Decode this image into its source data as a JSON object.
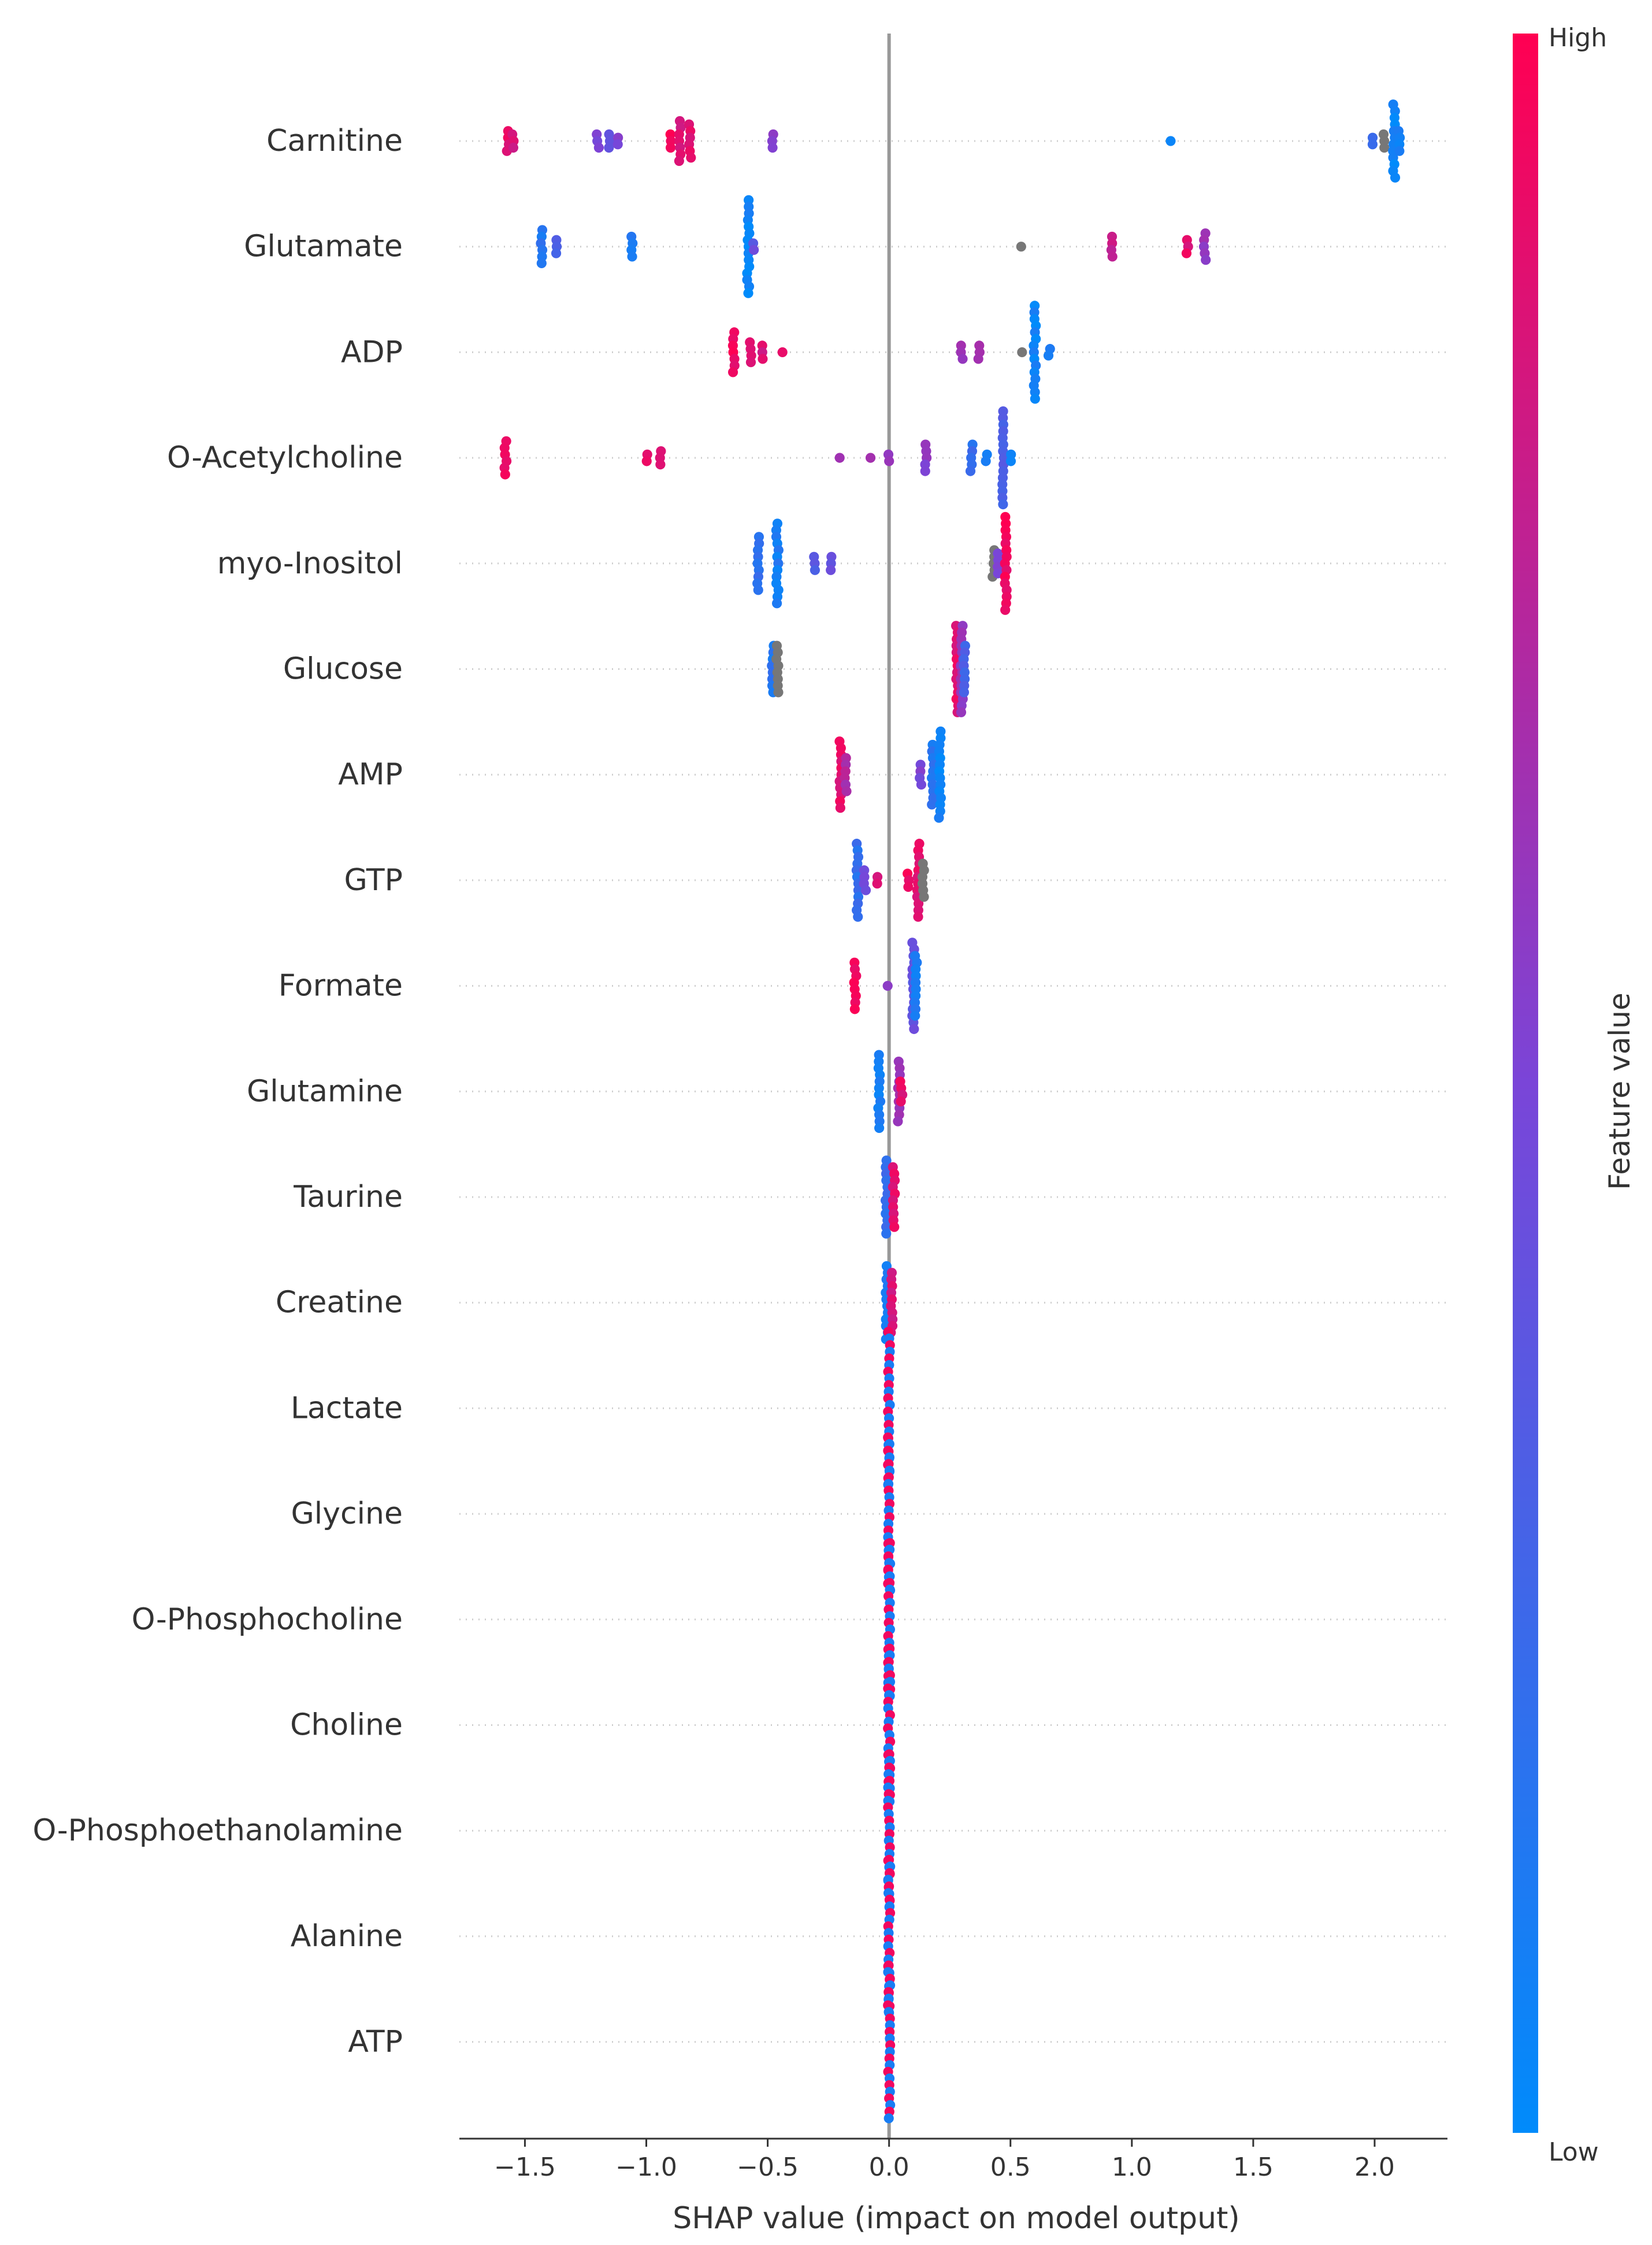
{
  "chart_data": {
    "type": "scatter",
    "subtype": "shap-beeswarm",
    "title": "",
    "xlabel": "SHAP value (impact on model output)",
    "ylabel": "",
    "xlim": [
      -1.77,
      2.3
    ],
    "xticks": [
      -1.5,
      -1.0,
      -0.5,
      0.0,
      0.5,
      1.0,
      1.5,
      2.0
    ],
    "xtick_labels": [
      "−1.5",
      "−1.0",
      "−0.5",
      "0.0",
      "0.5",
      "1.0",
      "1.5",
      "2.0"
    ],
    "grid": false,
    "colorbar": {
      "label": "Feature value",
      "high_label": "High",
      "low_label": "Low",
      "low_color": "#008bfb",
      "high_color": "#ff0052"
    },
    "missing_color": "#777777",
    "features": [
      {
        "name": "Carnitine",
        "groups": [
          {
            "x": -1.57,
            "n": 4,
            "c": 0.9
          },
          {
            "x": -1.55,
            "n": 3,
            "c": 0.85
          },
          {
            "x": -1.2,
            "n": 3,
            "c": 0.5
          },
          {
            "x": -1.15,
            "n": 3,
            "c": 0.45
          },
          {
            "x": -1.12,
            "n": 2,
            "c": 0.5
          },
          {
            "x": -0.9,
            "n": 3,
            "c": 0.95
          },
          {
            "x": -0.86,
            "n": 7,
            "c": 0.85
          },
          {
            "x": -0.82,
            "n": 6,
            "c": 0.9
          },
          {
            "x": -0.48,
            "n": 3,
            "c": 0.55
          },
          {
            "x": 1.16,
            "n": 1,
            "c": 0.0
          },
          {
            "x": 1.99,
            "n": 2,
            "c": 0.2
          },
          {
            "x": 2.04,
            "n": 3,
            "c": "na"
          },
          {
            "x": 2.08,
            "n": 12,
            "c": 0.05
          },
          {
            "x": 2.1,
            "n": 4,
            "c": 0.1
          }
        ]
      },
      {
        "name": "Glutamate",
        "groups": [
          {
            "x": -1.43,
            "n": 6,
            "c": 0.15
          },
          {
            "x": -1.37,
            "n": 3,
            "c": 0.3
          },
          {
            "x": -1.06,
            "n": 4,
            "c": 0.15
          },
          {
            "x": -0.58,
            "n": 15,
            "c": 0.05
          },
          {
            "x": -0.56,
            "n": 2,
            "c": 0.4
          },
          {
            "x": 0.54,
            "n": 1,
            "c": "na"
          },
          {
            "x": 0.92,
            "n": 4,
            "c": 0.8
          },
          {
            "x": 1.23,
            "n": 3,
            "c": 0.9
          },
          {
            "x": 1.3,
            "n": 5,
            "c": 0.6
          }
        ]
      },
      {
        "name": "ADP",
        "groups": [
          {
            "x": -0.64,
            "n": 7,
            "c": 0.95
          },
          {
            "x": -0.57,
            "n": 4,
            "c": 0.9
          },
          {
            "x": -0.52,
            "n": 3,
            "c": 0.85
          },
          {
            "x": -0.44,
            "n": 1,
            "c": 0.95
          },
          {
            "x": 0.3,
            "n": 3,
            "c": 0.6
          },
          {
            "x": 0.37,
            "n": 3,
            "c": 0.7
          },
          {
            "x": 0.55,
            "n": 1,
            "c": "na"
          },
          {
            "x": 0.6,
            "n": 15,
            "c": 0.05
          },
          {
            "x": 0.66,
            "n": 2,
            "c": 0.15
          }
        ]
      },
      {
        "name": "O-Acetylcholine",
        "groups": [
          {
            "x": -1.58,
            "n": 6,
            "c": 0.95
          },
          {
            "x": -1.0,
            "n": 2,
            "c": 0.95
          },
          {
            "x": -0.94,
            "n": 3,
            "c": 0.9
          },
          {
            "x": -0.2,
            "n": 1,
            "c": 0.6
          },
          {
            "x": -0.08,
            "n": 1,
            "c": 0.7
          },
          {
            "x": 0.0,
            "n": 2,
            "c": 0.6
          },
          {
            "x": 0.15,
            "n": 5,
            "c": 0.55
          },
          {
            "x": 0.34,
            "n": 5,
            "c": 0.2
          },
          {
            "x": 0.4,
            "n": 2,
            "c": 0.1
          },
          {
            "x": 0.47,
            "n": 15,
            "c": 0.3
          },
          {
            "x": 0.5,
            "n": 2,
            "c": 0.1
          }
        ]
      },
      {
        "name": "myo-Inositol",
        "groups": [
          {
            "x": -0.54,
            "n": 9,
            "c": 0.2
          },
          {
            "x": -0.46,
            "n": 13,
            "c": 0.1
          },
          {
            "x": -0.31,
            "n": 3,
            "c": 0.35
          },
          {
            "x": -0.24,
            "n": 3,
            "c": 0.4
          },
          {
            "x": 0.43,
            "n": 5,
            "c": "na"
          },
          {
            "x": 0.45,
            "n": 4,
            "c": 0.55
          },
          {
            "x": 0.48,
            "n": 15,
            "c": 0.95
          }
        ]
      },
      {
        "name": "Glucose",
        "groups": [
          {
            "x": -0.48,
            "n": 8,
            "c": 0.15
          },
          {
            "x": -0.46,
            "n": 8,
            "c": "na"
          },
          {
            "x": 0.28,
            "n": 14,
            "c": 0.9
          },
          {
            "x": 0.3,
            "n": 14,
            "c": 0.6
          },
          {
            "x": 0.31,
            "n": 8,
            "c": 0.3
          }
        ]
      },
      {
        "name": "AMP",
        "groups": [
          {
            "x": -0.2,
            "n": 11,
            "c": 0.9
          },
          {
            "x": -0.18,
            "n": 6,
            "c": 0.7
          },
          {
            "x": 0.13,
            "n": 4,
            "c": 0.5
          },
          {
            "x": 0.18,
            "n": 10,
            "c": 0.15
          },
          {
            "x": 0.21,
            "n": 14,
            "c": 0.05
          }
        ]
      },
      {
        "name": "GTP",
        "groups": [
          {
            "x": -0.13,
            "n": 12,
            "c": 0.2
          },
          {
            "x": -0.1,
            "n": 4,
            "c": 0.5
          },
          {
            "x": -0.05,
            "n": 2,
            "c": 0.85
          },
          {
            "x": 0.08,
            "n": 3,
            "c": 0.95
          },
          {
            "x": 0.12,
            "n": 12,
            "c": 0.9
          },
          {
            "x": 0.14,
            "n": 6,
            "c": "na"
          }
        ]
      },
      {
        "name": "Formate",
        "groups": [
          {
            "x": -0.14,
            "n": 8,
            "c": 0.95
          },
          {
            "x": -0.01,
            "n": 1,
            "c": 0.6
          },
          {
            "x": 0.1,
            "n": 14,
            "c": 0.4
          },
          {
            "x": 0.11,
            "n": 10,
            "c": 0.1
          }
        ]
      },
      {
        "name": "Glutamine",
        "groups": [
          {
            "x": -0.04,
            "n": 12,
            "c": 0.1
          },
          {
            "x": 0.04,
            "n": 10,
            "c": 0.65
          },
          {
            "x": 0.05,
            "n": 4,
            "c": 0.9
          }
        ]
      },
      {
        "name": "Taurine",
        "groups": [
          {
            "x": -0.01,
            "n": 12,
            "c": 0.2
          },
          {
            "x": 0.02,
            "n": 10,
            "c": 0.9
          }
        ]
      },
      {
        "name": "Creatine",
        "groups": [
          {
            "x": -0.01,
            "n": 12,
            "c": 0.1
          },
          {
            "x": 0.01,
            "n": 10,
            "c": 0.85
          }
        ]
      },
      {
        "name": "Lactate",
        "groups": [
          {
            "x": 0.0,
            "n": 24,
            "c": "mix"
          }
        ]
      },
      {
        "name": "Glycine",
        "groups": [
          {
            "x": 0.0,
            "n": 24,
            "c": "mix"
          }
        ]
      },
      {
        "name": "O-Phosphocholine",
        "groups": [
          {
            "x": 0.0,
            "n": 24,
            "c": "mix"
          }
        ]
      },
      {
        "name": "Choline",
        "groups": [
          {
            "x": 0.0,
            "n": 24,
            "c": "mix"
          }
        ]
      },
      {
        "name": "O-Phosphoethanolamine",
        "groups": [
          {
            "x": 0.0,
            "n": 24,
            "c": "mix"
          }
        ]
      },
      {
        "name": "Alanine",
        "groups": [
          {
            "x": 0.0,
            "n": 24,
            "c": "mix"
          }
        ]
      },
      {
        "name": "ATP",
        "groups": [
          {
            "x": 0.0,
            "n": 24,
            "c": "mix"
          }
        ]
      }
    ]
  }
}
